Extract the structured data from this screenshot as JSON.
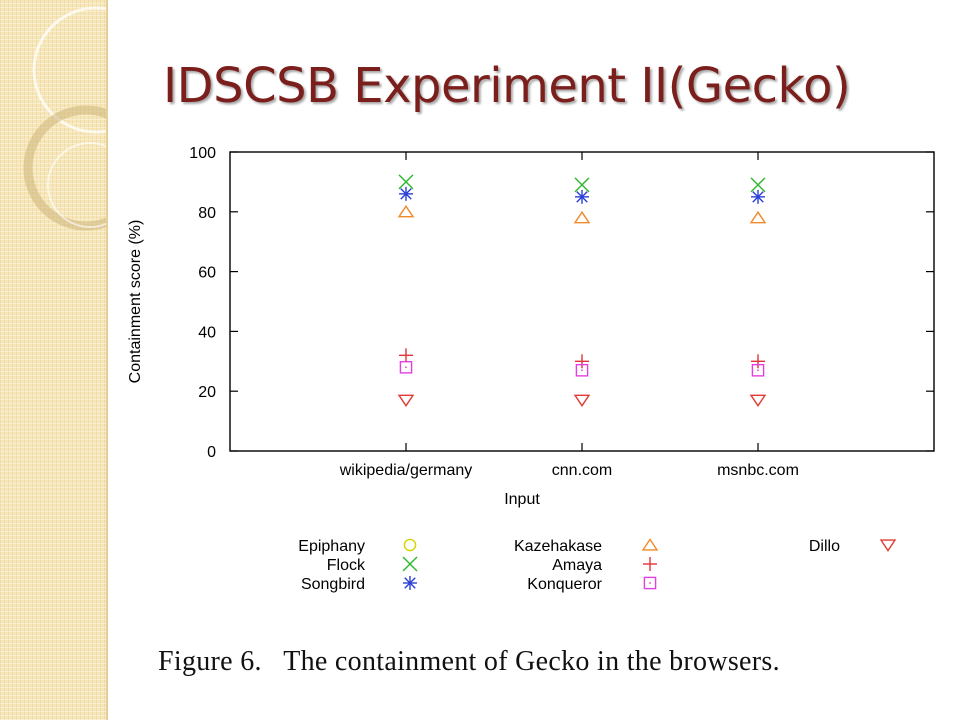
{
  "slide": {
    "title": "IDSCSB Experiment II(Gecko)"
  },
  "figure": {
    "caption": "Figure 6.   The containment of Gecko in the browsers."
  },
  "chart_data": {
    "type": "scatter",
    "title": "",
    "xlabel": "Input",
    "ylabel": "Containment score (%)",
    "categories": [
      "wikipedia/germany",
      "cnn.com",
      "msnbc.com"
    ],
    "ylim": [
      0,
      100
    ],
    "yticks": [
      "0",
      "20",
      "40",
      "60",
      "80",
      "100"
    ],
    "grid": false,
    "legend_position": "bottom",
    "series": [
      {
        "name": "Epiphany",
        "marker": "circle",
        "color": "#d4d400",
        "values": [
          null,
          null,
          null
        ]
      },
      {
        "name": "Flock",
        "marker": "x",
        "color": "#2db82d",
        "values": [
          90,
          89,
          89
        ]
      },
      {
        "name": "Songbird",
        "marker": "asterisk",
        "color": "#2a3fd8",
        "values": [
          86,
          85,
          85
        ]
      },
      {
        "name": "Kazehakase",
        "marker": "triangle-up",
        "color": "#f08a2a",
        "values": [
          80,
          78,
          78
        ]
      },
      {
        "name": "Amaya",
        "marker": "plus",
        "color": "#e0323a",
        "values": [
          32,
          30,
          30
        ]
      },
      {
        "name": "Konqueror",
        "marker": "square",
        "color": "#e040e0",
        "values": [
          28,
          27,
          27
        ]
      },
      {
        "name": "Dillo",
        "marker": "triangle-down",
        "color": "#e03a30",
        "values": [
          17,
          17,
          17
        ]
      }
    ]
  }
}
